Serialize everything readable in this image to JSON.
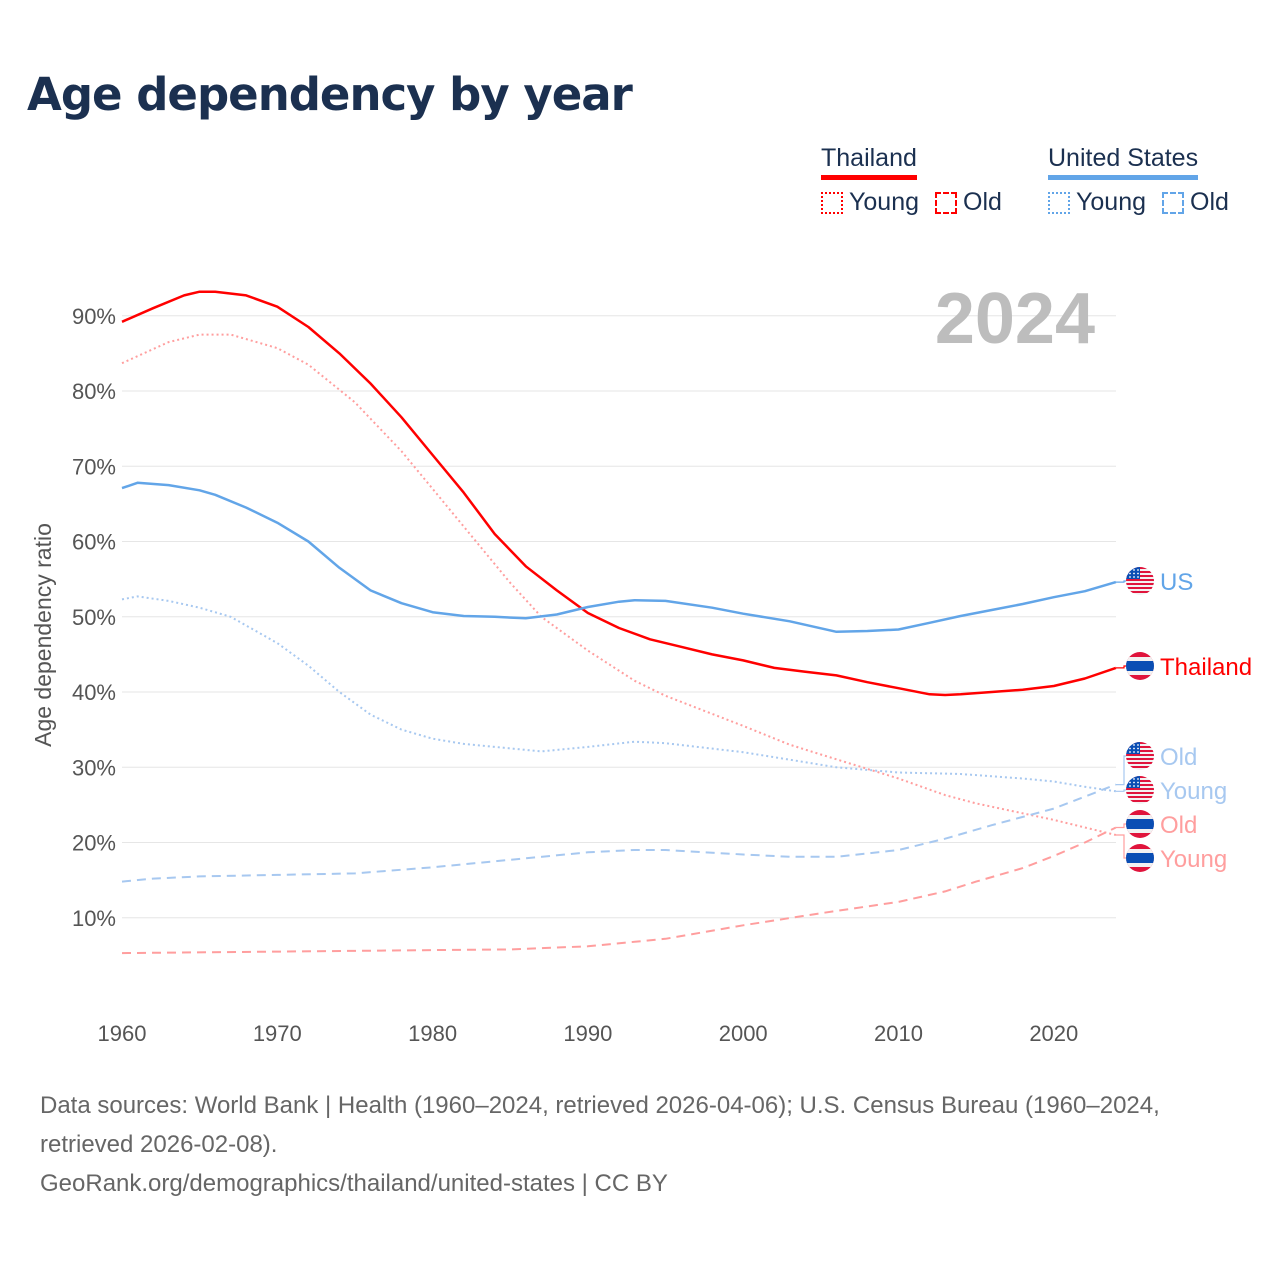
{
  "title": "Age dependency by year",
  "legend": {
    "groups": [
      {
        "name": "Thailand",
        "color": "#ff0000",
        "items": [
          "Young",
          "Old"
        ]
      },
      {
        "name": "United States",
        "color": "#62a5e8",
        "items": [
          "Young",
          "Old"
        ]
      }
    ]
  },
  "year_watermark": "2024",
  "footer": {
    "sources": "Data sources: World Bank | Health (1960–2024, retrieved 2026-04-06); U.S. Census Bureau (1960–2024, retrieved 2026-02-08).",
    "link": "GeoRank.org/demographics/thailand/united-states | CC BY"
  },
  "chart_data": {
    "type": "line",
    "title": "Age dependency by year",
    "xlabel": "",
    "ylabel": "Age dependency ratio",
    "xlim": [
      1960,
      2024
    ],
    "ylim": [
      0,
      95
    ],
    "x_ticks": [
      1960,
      1970,
      1980,
      1990,
      2000,
      2010,
      2020
    ],
    "y_ticks": [
      "10%",
      "20%",
      "30%",
      "40%",
      "50%",
      "60%",
      "70%",
      "80%",
      "90%"
    ],
    "grid": true,
    "series": [
      {
        "name": "Thailand",
        "label": "Thailand",
        "color": "#ff0000",
        "style": "solid",
        "flag": "th",
        "x": [
          1960,
          1962,
          1964,
          1965,
          1966,
          1968,
          1970,
          1972,
          1974,
          1976,
          1978,
          1980,
          1982,
          1984,
          1986,
          1988,
          1990,
          1992,
          1994,
          1996,
          1998,
          2000,
          2002,
          2004,
          2006,
          2008,
          2010,
          2012,
          2013,
          2014,
          2016,
          2018,
          2020,
          2022,
          2024
        ],
        "values": [
          89.2,
          91,
          92.7,
          93.2,
          93.2,
          92.7,
          91.2,
          88.5,
          85,
          81,
          76.5,
          71.5,
          66.5,
          61,
          56.7,
          53.5,
          50.5,
          48.5,
          47,
          46,
          45,
          44.2,
          43.2,
          42.7,
          42.2,
          41.3,
          40.5,
          39.7,
          39.6,
          39.7,
          40,
          40.3,
          40.8,
          41.8,
          43.2
        ]
      },
      {
        "name": "Thailand Young",
        "label": "Young",
        "color": "#ff9e9e",
        "style": "dotted",
        "flag": "th",
        "x": [
          1960,
          1963,
          1965,
          1967,
          1970,
          1972,
          1975,
          1978,
          1980,
          1983,
          1985,
          1987,
          1990,
          1993,
          1995,
          2000,
          2003,
          2005,
          2010,
          2013,
          2015,
          2020,
          2024
        ],
        "values": [
          83.7,
          86.5,
          87.5,
          87.5,
          85.7,
          83.5,
          78.5,
          72,
          67,
          59.5,
          54.5,
          50,
          45.5,
          41.5,
          39.5,
          35.5,
          33,
          31.7,
          28.5,
          26.3,
          25.2,
          23,
          21
        ]
      },
      {
        "name": "Thailand Old",
        "label": "Old",
        "color": "#ff9e9e",
        "style": "dashed",
        "flag": "th",
        "x": [
          1960,
          1970,
          1980,
          1985,
          1990,
          1995,
          2000,
          2005,
          2010,
          2013,
          2015,
          2018,
          2020,
          2022,
          2024
        ],
        "values": [
          5.3,
          5.5,
          5.7,
          5.8,
          6.2,
          7.2,
          9,
          10.6,
          12.1,
          13.5,
          14.8,
          16.6,
          18.2,
          20,
          22
        ]
      },
      {
        "name": "United States",
        "label": "US",
        "color": "#62a5e8",
        "style": "solid",
        "flag": "us",
        "x": [
          1960,
          1961,
          1963,
          1965,
          1966,
          1968,
          1970,
          1972,
          1974,
          1976,
          1978,
          1980,
          1982,
          1984,
          1986,
          1988,
          1990,
          1992,
          1993,
          1995,
          1998,
          2000,
          2003,
          2006,
          2008,
          2010,
          2012,
          2014,
          2016,
          2018,
          2020,
          2022,
          2024
        ],
        "values": [
          67.1,
          67.8,
          67.5,
          66.8,
          66.2,
          64.5,
          62.5,
          60,
          56.5,
          53.5,
          51.8,
          50.6,
          50.1,
          50,
          49.8,
          50.3,
          51.3,
          52,
          52.2,
          52.1,
          51.2,
          50.4,
          49.4,
          48,
          48.1,
          48.3,
          49.2,
          50.1,
          50.9,
          51.7,
          52.6,
          53.4,
          54.6
        ]
      },
      {
        "name": "United States Young",
        "label": "Young",
        "color": "#a7c8f0",
        "style": "dotted",
        "flag": "us",
        "x": [
          1960,
          1961,
          1963,
          1965,
          1967,
          1970,
          1972,
          1974,
          1976,
          1978,
          1980,
          1982,
          1985,
          1987,
          1990,
          1993,
          1995,
          2000,
          2003,
          2006,
          2010,
          2014,
          2018,
          2020,
          2022,
          2024
        ],
        "values": [
          52.3,
          52.7,
          52.1,
          51.2,
          50,
          46.5,
          43.5,
          40,
          37,
          35,
          33.8,
          33.1,
          32.5,
          32.1,
          32.7,
          33.4,
          33.2,
          32,
          31,
          30,
          29.3,
          29.1,
          28.5,
          28.1,
          27.4,
          26.8
        ]
      },
      {
        "name": "United States Old",
        "label": "Old",
        "color": "#a7c8f0",
        "style": "dashed",
        "flag": "us",
        "x": [
          1960,
          1962,
          1965,
          1970,
          1975,
          1980,
          1985,
          1990,
          1993,
          1995,
          2000,
          2003,
          2006,
          2010,
          2013,
          2016,
          2020,
          2024
        ],
        "values": [
          14.8,
          15.2,
          15.5,
          15.7,
          15.9,
          16.7,
          17.7,
          18.7,
          19,
          19,
          18.4,
          18.1,
          18.1,
          19,
          20.5,
          22.3,
          24.5,
          27.7
        ]
      }
    ],
    "end_labels_order": [
      "United States",
      "Thailand",
      "United States Old",
      "United States Young",
      "Thailand Old",
      "Thailand Young"
    ]
  }
}
